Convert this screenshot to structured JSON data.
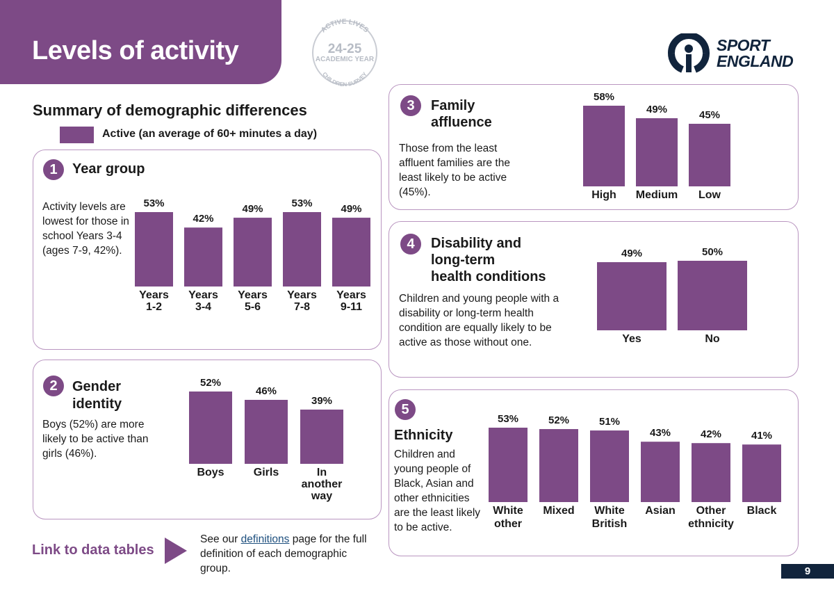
{
  "header": {
    "title": "Levels of activity"
  },
  "badge": {
    "line1": "ACTIVE LIVES",
    "year": "24-25",
    "line2": "ACADEMIC YEAR",
    "line3": "CHILDREN SURVEY"
  },
  "logo": {
    "line1": "SPORT",
    "line2": "ENGLAND"
  },
  "summary": {
    "title": "Summary of demographic differences",
    "legend_label": "Active (an average of 60+ minutes a day)"
  },
  "colors": {
    "accent": "#7d4a86",
    "navy": "#11243c",
    "border": "#b995c0"
  },
  "sections": {
    "year": {
      "num": "1",
      "title": "Year group",
      "desc": "Activity levels are lowest for those in school Years 3-4 (ages 7-9, 42%)."
    },
    "gender": {
      "num": "2",
      "title_line1": "Gender",
      "title_line2": "identity",
      "desc": "Boys (52%) are more likely to be active than girls (46%)."
    },
    "affluence": {
      "num": "3",
      "title_line1": "Family",
      "title_line2": "affluence",
      "desc": "Those from the least affluent families are the least likely to be active (45%)."
    },
    "disability": {
      "num": "4",
      "title_line1": "Disability and",
      "title_line2": "long-term",
      "title_line3": "health conditions",
      "desc": "Children and young people with a disability or long-term health condition are equally likely to be active as those without one."
    },
    "ethnicity": {
      "num": "5",
      "title": "Ethnicity",
      "desc": "Children and young people of Black, Asian and other ethnicities are the least likely to be active."
    }
  },
  "chart_data": [
    {
      "id": "year",
      "type": "bar",
      "title": "Year group",
      "categories": [
        [
          "Years",
          "1-2"
        ],
        [
          "Years",
          "3-4"
        ],
        [
          "Years",
          "5-6"
        ],
        [
          "Years",
          "7-8"
        ],
        [
          "Years",
          "9-11"
        ]
      ],
      "values": [
        53,
        42,
        49,
        53,
        49
      ],
      "value_labels": [
        "53%",
        "42%",
        "49%",
        "53%",
        "49%"
      ],
      "ylim": [
        0,
        53
      ]
    },
    {
      "id": "gender",
      "type": "bar",
      "title": "Gender identity",
      "categories": [
        [
          "Boys"
        ],
        [
          "Girls"
        ],
        [
          "In",
          "another",
          "way"
        ]
      ],
      "values": [
        52,
        46,
        39
      ],
      "value_labels": [
        "52%",
        "46%",
        "39%"
      ],
      "ylim": [
        0,
        52
      ]
    },
    {
      "id": "affluence",
      "type": "bar",
      "title": "Family affluence",
      "categories": [
        [
          "High"
        ],
        [
          "Medium"
        ],
        [
          "Low"
        ]
      ],
      "values": [
        58,
        49,
        45
      ],
      "value_labels": [
        "58%",
        "49%",
        "45%"
      ],
      "ylim": [
        0,
        58
      ]
    },
    {
      "id": "disability",
      "type": "bar",
      "title": "Disability and long-term health conditions",
      "categories": [
        [
          "Yes"
        ],
        [
          "No"
        ]
      ],
      "values": [
        49,
        50
      ],
      "value_labels": [
        "49%",
        "50%"
      ],
      "ylim": [
        0,
        50
      ]
    },
    {
      "id": "ethnicity",
      "type": "bar",
      "title": "Ethnicity",
      "categories": [
        [
          "White",
          "other"
        ],
        [
          "Mixed"
        ],
        [
          "White",
          "British"
        ],
        [
          "Asian"
        ],
        [
          "Other",
          "ethnicity"
        ],
        [
          "Black"
        ]
      ],
      "values": [
        53,
        52,
        51,
        43,
        42,
        41
      ],
      "value_labels": [
        "53%",
        "52%",
        "51%",
        "43%",
        "42%",
        "41%"
      ],
      "ylim": [
        0,
        53
      ]
    }
  ],
  "footer": {
    "link_label": "Link to data tables",
    "defs_before": "See our ",
    "defs_link": "definitions",
    "defs_after": " page for the full definition of each demographic group.",
    "page_number": "9"
  }
}
